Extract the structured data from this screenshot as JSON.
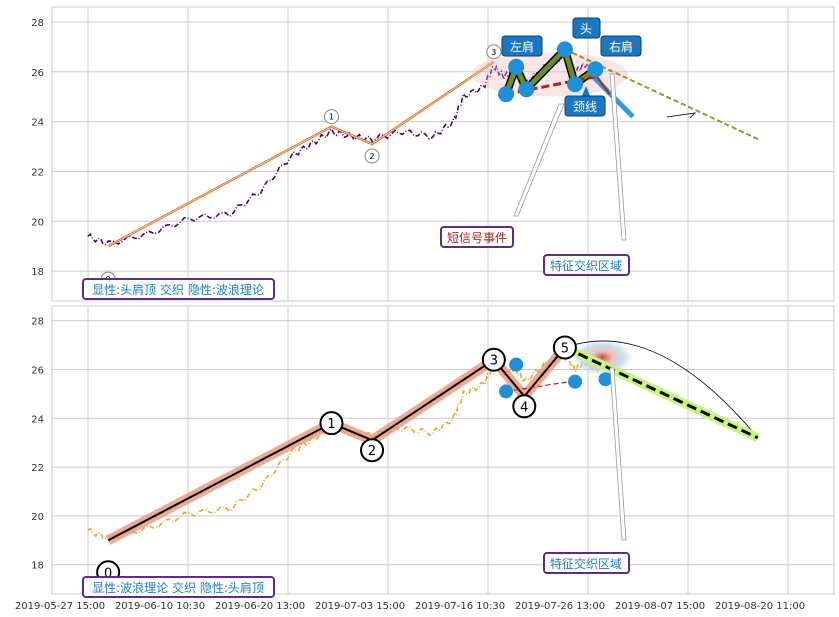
{
  "colors": {
    "grid": "#cccccc",
    "axis_text": "#333333",
    "top_price": "#4b0082",
    "bottom_price": "#e8a838",
    "hs_fill": "#6b8e23",
    "accent_blue": "#1f8fd8",
    "callout_fill": "#1a78c2",
    "neckline": "#b22222",
    "box_border": "#5b2c91",
    "box_text_blue": "#1f7fc4",
    "box_text_red": "#b22222",
    "wave_thick": "#e9967a",
    "proj_green": "#c7f584"
  },
  "x_ticks": [
    "2019-05-27 15:00",
    "2019-06-10 10:30",
    "2019-06-20 13:00",
    "2019-07-03 15:00",
    "2019-07-16 10:30",
    "2019-07-26 13:00",
    "2019-08-07 15:00",
    "2019-08-20 11:00"
  ],
  "chart_data": [
    {
      "type": "line",
      "panel": "top",
      "y_ticks": [
        "18",
        "20",
        "22",
        "24",
        "26",
        "28"
      ],
      "ylim": [
        16.8,
        28.6
      ],
      "grid": true,
      "wave_points": [
        {
          "label": "0",
          "x": 1,
          "y": 19.0
        },
        {
          "label": "1",
          "x": 23,
          "y": 23.8
        },
        {
          "label": "2",
          "x": 27,
          "y": 23.1
        },
        {
          "label": "3",
          "x": 39,
          "y": 26.4
        }
      ],
      "hs_points": [
        {
          "x": 40.2,
          "y": 25.1
        },
        {
          "x": 41.2,
          "y": 26.2
        },
        {
          "x": 42.2,
          "y": 25.3
        },
        {
          "x": 46.0,
          "y": 26.9
        },
        {
          "x": 47.0,
          "y": 25.5
        },
        {
          "x": 49.0,
          "y": 26.1
        }
      ],
      "neckline": [
        {
          "x": 40.2,
          "y": 25.1
        },
        {
          "x": 49.0,
          "y": 25.8
        }
      ],
      "projection": [
        {
          "x": 46.0,
          "y": 26.9
        },
        {
          "x": 65,
          "y": 23.3
        }
      ],
      "labels": {
        "left_shoulder": "左肩",
        "head": "头",
        "right_shoulder": "右肩",
        "neckline": "颈线",
        "short_signal": "短信号事件",
        "feature_zone": "特征交织区域",
        "caption": "显性:头肩顶 交织 隐性:波浪理论"
      }
    },
    {
      "type": "line",
      "panel": "bottom",
      "y_ticks": [
        "18",
        "20",
        "22",
        "24",
        "26",
        "28"
      ],
      "ylim": [
        16.8,
        28.6
      ],
      "grid": true,
      "wave_points": [
        {
          "label": "0",
          "x": 1,
          "y": 19.0
        },
        {
          "label": "1",
          "x": 23,
          "y": 23.8
        },
        {
          "label": "2",
          "x": 27,
          "y": 23.1
        },
        {
          "label": "3",
          "x": 39,
          "y": 26.4
        },
        {
          "label": "4",
          "x": 42,
          "y": 24.9
        },
        {
          "label": "5",
          "x": 46,
          "y": 26.9
        }
      ],
      "hs_points": [
        {
          "x": 40.2,
          "y": 25.1
        },
        {
          "x": 41.2,
          "y": 26.2
        },
        {
          "x": 47.0,
          "y": 25.5
        },
        {
          "x": 50.0,
          "y": 25.6
        }
      ],
      "neckline": [
        {
          "x": 40.2,
          "y": 25.1
        },
        {
          "x": 48.0,
          "y": 25.6
        }
      ],
      "projection": [
        {
          "x": 46,
          "y": 26.9
        },
        {
          "x": 65,
          "y": 23.2
        }
      ],
      "labels": {
        "feature_zone": "特征交织区域",
        "caption": "显性:波浪理论 交织 隐性:头肩顶"
      }
    }
  ]
}
